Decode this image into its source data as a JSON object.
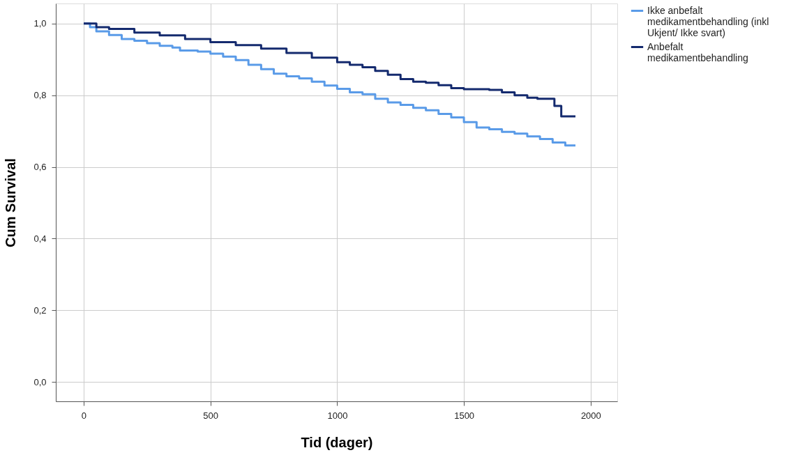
{
  "chart_data": {
    "type": "step",
    "xlabel": "Tid (dager)",
    "ylabel": "Cum Survival",
    "xlim": [
      -110,
      2105
    ],
    "ylim": [
      -0.054,
      1.056
    ],
    "xticks": [
      0,
      500,
      1000,
      1500,
      2000
    ],
    "yticks": [
      {
        "value": 0,
        "label": "0,0"
      },
      {
        "value": 0.2,
        "label": "0,2"
      },
      {
        "value": 0.4,
        "label": "0,4"
      },
      {
        "value": 0.6,
        "label": "0,6"
      },
      {
        "value": 0.8,
        "label": "0,8"
      },
      {
        "value": 1,
        "label": "1,0"
      }
    ],
    "grid": true,
    "legend": "right",
    "line_style": "solid",
    "marker": "none",
    "series": [
      {
        "name": "Ikke anbefalt medikamentbehandling (inkl Ukjent/ Ikke svart)",
        "color": "#5a9be8",
        "x": [
          0,
          25,
          50,
          100,
          150,
          200,
          250,
          300,
          350,
          380,
          450,
          500,
          550,
          600,
          650,
          700,
          750,
          800,
          850,
          900,
          950,
          1000,
          1050,
          1100,
          1150,
          1200,
          1250,
          1300,
          1350,
          1400,
          1450,
          1500,
          1550,
          1600,
          1650,
          1700,
          1750,
          1800,
          1850,
          1900,
          1940
        ],
        "values": [
          1.0,
          0.99,
          0.978,
          0.968,
          0.957,
          0.952,
          0.945,
          0.938,
          0.933,
          0.925,
          0.922,
          0.916,
          0.908,
          0.898,
          0.885,
          0.873,
          0.86,
          0.853,
          0.847,
          0.838,
          0.827,
          0.818,
          0.808,
          0.803,
          0.79,
          0.78,
          0.773,
          0.765,
          0.758,
          0.748,
          0.738,
          0.725,
          0.71,
          0.705,
          0.698,
          0.693,
          0.685,
          0.678,
          0.668,
          0.66,
          0.66
        ]
      },
      {
        "name": "Anbefalt medikamentbehandling",
        "color": "#142a6e",
        "x": [
          0,
          50,
          100,
          200,
          300,
          400,
          500,
          600,
          700,
          800,
          900,
          1000,
          1050,
          1100,
          1150,
          1200,
          1250,
          1300,
          1350,
          1400,
          1450,
          1500,
          1600,
          1650,
          1700,
          1750,
          1790,
          1857,
          1884,
          1940
        ],
        "values": [
          1.0,
          0.99,
          0.985,
          0.975,
          0.967,
          0.957,
          0.948,
          0.94,
          0.93,
          0.918,
          0.905,
          0.892,
          0.885,
          0.878,
          0.868,
          0.857,
          0.845,
          0.838,
          0.835,
          0.828,
          0.82,
          0.817,
          0.815,
          0.808,
          0.8,
          0.793,
          0.79,
          0.77,
          0.741,
          0.741
        ]
      }
    ]
  }
}
